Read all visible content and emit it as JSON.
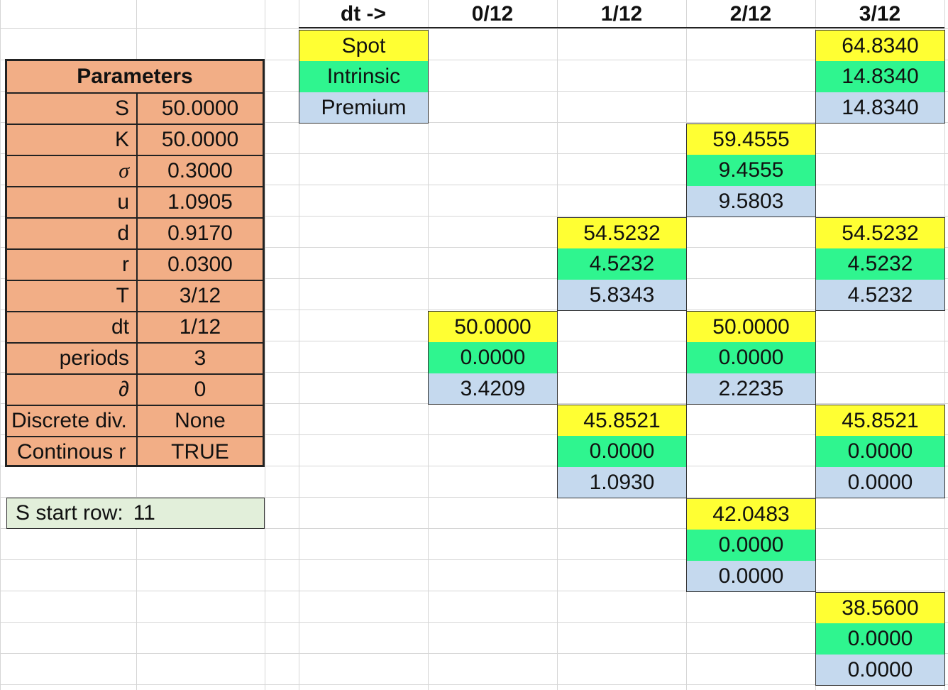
{
  "header": {
    "dt_arrow": "dt ->",
    "periods": [
      "0/12",
      "1/12",
      "2/12",
      "3/12"
    ]
  },
  "legend": {
    "spot": "Spot",
    "intrinsic": "Intrinsic",
    "premium": "Premium"
  },
  "parameters": {
    "title": "Parameters",
    "rows": [
      {
        "label": "S",
        "value": "50.0000"
      },
      {
        "label": "K",
        "value": "50.0000"
      },
      {
        "label": "σ",
        "value": "0.3000"
      },
      {
        "label": "u",
        "value": "1.0905"
      },
      {
        "label": "d",
        "value": "0.9170"
      },
      {
        "label": "r",
        "value": "0.0300"
      },
      {
        "label": "T",
        "value": "3/12"
      },
      {
        "label": "dt",
        "value": "1/12"
      },
      {
        "label": "periods",
        "value": "3"
      },
      {
        "label": "∂",
        "value": "0"
      },
      {
        "label": "Discrete div.",
        "value": "None"
      },
      {
        "label": "Continous r",
        "value": "TRUE"
      }
    ]
  },
  "start_row": {
    "label": "S start row:",
    "value": "11"
  },
  "tree": {
    "t0": {
      "n0": {
        "spot": "50.0000",
        "intrinsic": "0.0000",
        "premium": "3.4209"
      }
    },
    "t1": {
      "up": {
        "spot": "54.5232",
        "intrinsic": "4.5232",
        "premium": "5.8343"
      },
      "down": {
        "spot": "45.8521",
        "intrinsic": "0.0000",
        "premium": "1.0930"
      }
    },
    "t2": {
      "uu": {
        "spot": "59.4555",
        "intrinsic": "9.4555",
        "premium": "9.5803"
      },
      "ud": {
        "spot": "50.0000",
        "intrinsic": "0.0000",
        "premium": "2.2235"
      },
      "dd": {
        "spot": "42.0483",
        "intrinsic": "0.0000",
        "premium": "0.0000"
      }
    },
    "t3": {
      "uuu": {
        "spot": "64.8340",
        "intrinsic": "14.8340",
        "premium": "14.8340"
      },
      "uud": {
        "spot": "54.5232",
        "intrinsic": "4.5232",
        "premium": "4.5232"
      },
      "udd": {
        "spot": "45.8521",
        "intrinsic": "0.0000",
        "premium": "0.0000"
      },
      "ddd": {
        "spot": "38.5600",
        "intrinsic": "0.0000",
        "premium": "0.0000"
      }
    }
  }
}
